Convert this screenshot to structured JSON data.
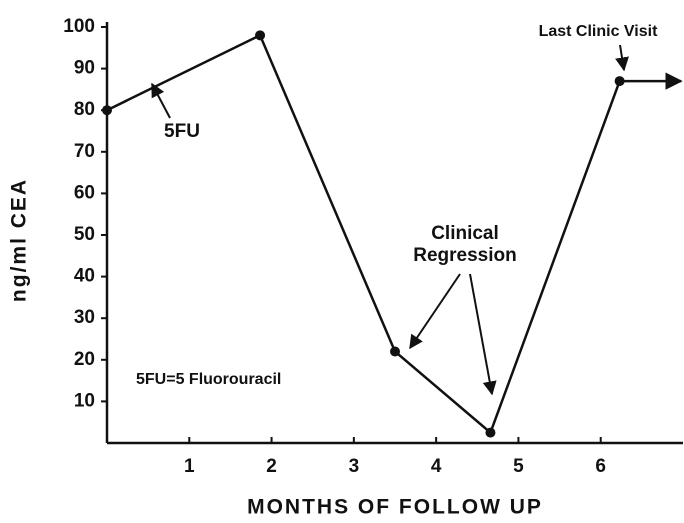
{
  "chart_data": {
    "type": "line",
    "x_label": "MONTHS OF FOLLOW UP",
    "y_label": "ng/ml CEA",
    "x": [
      0,
      1.86,
      3.5,
      4.66,
      6.23
    ],
    "series": [
      {
        "color": "#111111",
        "values": [
          80,
          98,
          22,
          2.5,
          87
        ]
      }
    ],
    "xlim": [
      0,
      7
    ],
    "xticks": [
      1,
      2,
      3,
      4,
      5,
      6
    ],
    "ylim": [
      0,
      100
    ],
    "yticks": [
      10,
      20,
      30,
      40,
      50,
      60,
      70,
      80,
      90,
      100
    ],
    "annotations": [
      {
        "lines": [
          "5FU"
        ]
      },
      {
        "lines": [
          "Clinical",
          "Regression"
        ]
      },
      {
        "lines": [
          "Last Clinic Visit"
        ]
      },
      {
        "lines": [
          "5FU=5 Fluorouracil"
        ]
      }
    ]
  }
}
